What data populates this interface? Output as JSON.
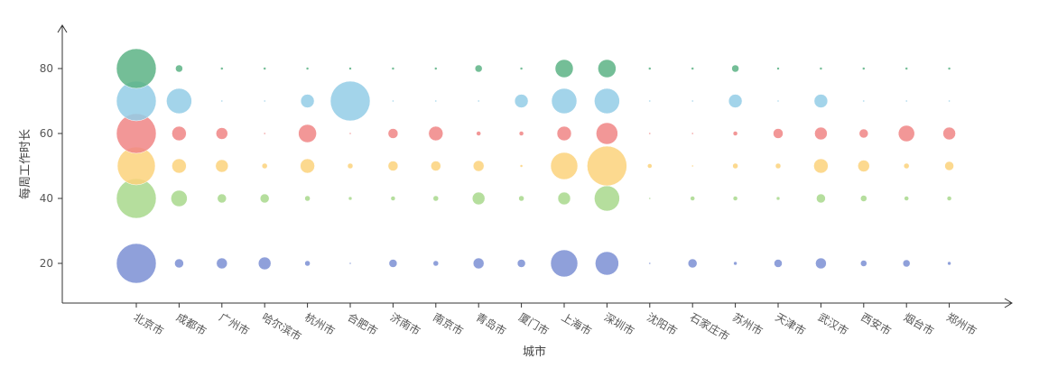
{
  "chart_data": {
    "type": "scatter",
    "subtype": "bubble",
    "title": "",
    "xlabel": "城市",
    "ylabel": "每周工作时长",
    "ylim": [
      8,
      92
    ],
    "yticks": [
      20,
      40,
      60,
      80
    ],
    "grid": false,
    "legend": "none",
    "categories": [
      "北京市",
      "成都市",
      "广州市",
      "哈尔滨市",
      "杭州市",
      "合肥市",
      "济南市",
      "南京市",
      "青岛市",
      "厦门市",
      "上海市",
      "深圳市",
      "沈阳市",
      "石家庄市",
      "苏州市",
      "天津市",
      "武汉市",
      "西安市",
      "烟台市",
      "郑州市"
    ],
    "series": [
      {
        "y": 20,
        "color": "#7b8fd4",
        "sizes": [
          22,
          5,
          6,
          7,
          3,
          1,
          4.5,
          3,
          6,
          4.5,
          15,
          13,
          1,
          5,
          2,
          4.5,
          6,
          3.5,
          4,
          2
        ]
      },
      {
        "y": 40,
        "color": "#a8d88c",
        "sizes": [
          22,
          9,
          5,
          5,
          3,
          2,
          2.5,
          3,
          7,
          3,
          7,
          14,
          1,
          2.5,
          2.5,
          2,
          5,
          3.5,
          2.5,
          2.5
        ]
      },
      {
        "y": 50,
        "color": "#fcd27b",
        "sizes": [
          21,
          8,
          7,
          3,
          8,
          3,
          5.5,
          5.5,
          6,
          1.5,
          15,
          22,
          2.5,
          1,
          3,
          3,
          8,
          6.5,
          3,
          5
        ]
      },
      {
        "y": 60,
        "color": "#f08585",
        "sizes": [
          22,
          8,
          6.5,
          1,
          10,
          1,
          5.5,
          8,
          2.5,
          2.5,
          8,
          12,
          1,
          1,
          2.5,
          5.5,
          7,
          5,
          9,
          7
        ]
      },
      {
        "y": 70,
        "color": "#93cce6",
        "sizes": [
          22,
          14,
          1,
          1,
          7.5,
          22,
          1,
          1,
          1,
          7.5,
          14,
          14,
          1,
          1,
          7.5,
          1,
          7.5,
          1,
          1,
          1
        ]
      },
      {
        "y": 80,
        "color": "#5cb385",
        "sizes": [
          22,
          4,
          1.5,
          1.5,
          1.5,
          1.5,
          1.5,
          1.5,
          4,
          1.5,
          10,
          10,
          1.5,
          1.5,
          4,
          1.5,
          1.5,
          1.5,
          1.5,
          1.5
        ]
      }
    ]
  }
}
